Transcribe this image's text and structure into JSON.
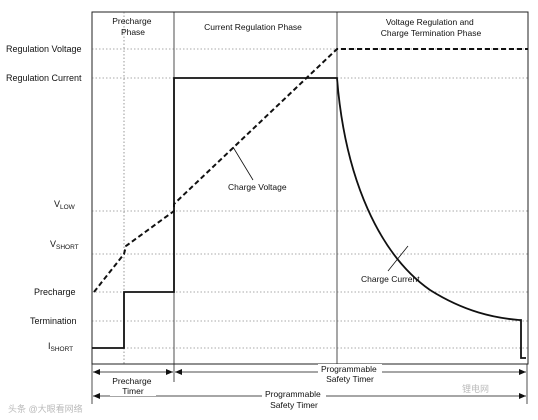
{
  "phases": {
    "precharge": [
      "Precharge",
      "Phase"
    ],
    "current_regulation": [
      "Current Regulation Phase"
    ],
    "voltage_regulation": [
      "Voltage Regulation and",
      "Charge Termination Phase"
    ]
  },
  "y_labels": {
    "regulation_voltage": "Regulation Voltage",
    "regulation_current": "Regulation Current",
    "vlow_main": "V",
    "vlow_sub": "LOW",
    "vshort_main": "V",
    "vshort_sub": "SHORT",
    "precharge": "Precharge",
    "termination": "Termination",
    "ishort_main": "I",
    "ishort_sub": "SHORT"
  },
  "annotations": {
    "charge_voltage": "Charge Voltage",
    "charge_current": "Charge Current"
  },
  "timers": {
    "precharge": [
      "Precharge",
      "Timer"
    ],
    "programmable_upper": [
      "Programmable",
      "Safety Timer"
    ],
    "programmable_lower": [
      "Programmable",
      "Safety Timer"
    ]
  },
  "watermarks": {
    "bottom_left": "头条 @大眼看网络",
    "bottom_right": "锂电网"
  }
}
